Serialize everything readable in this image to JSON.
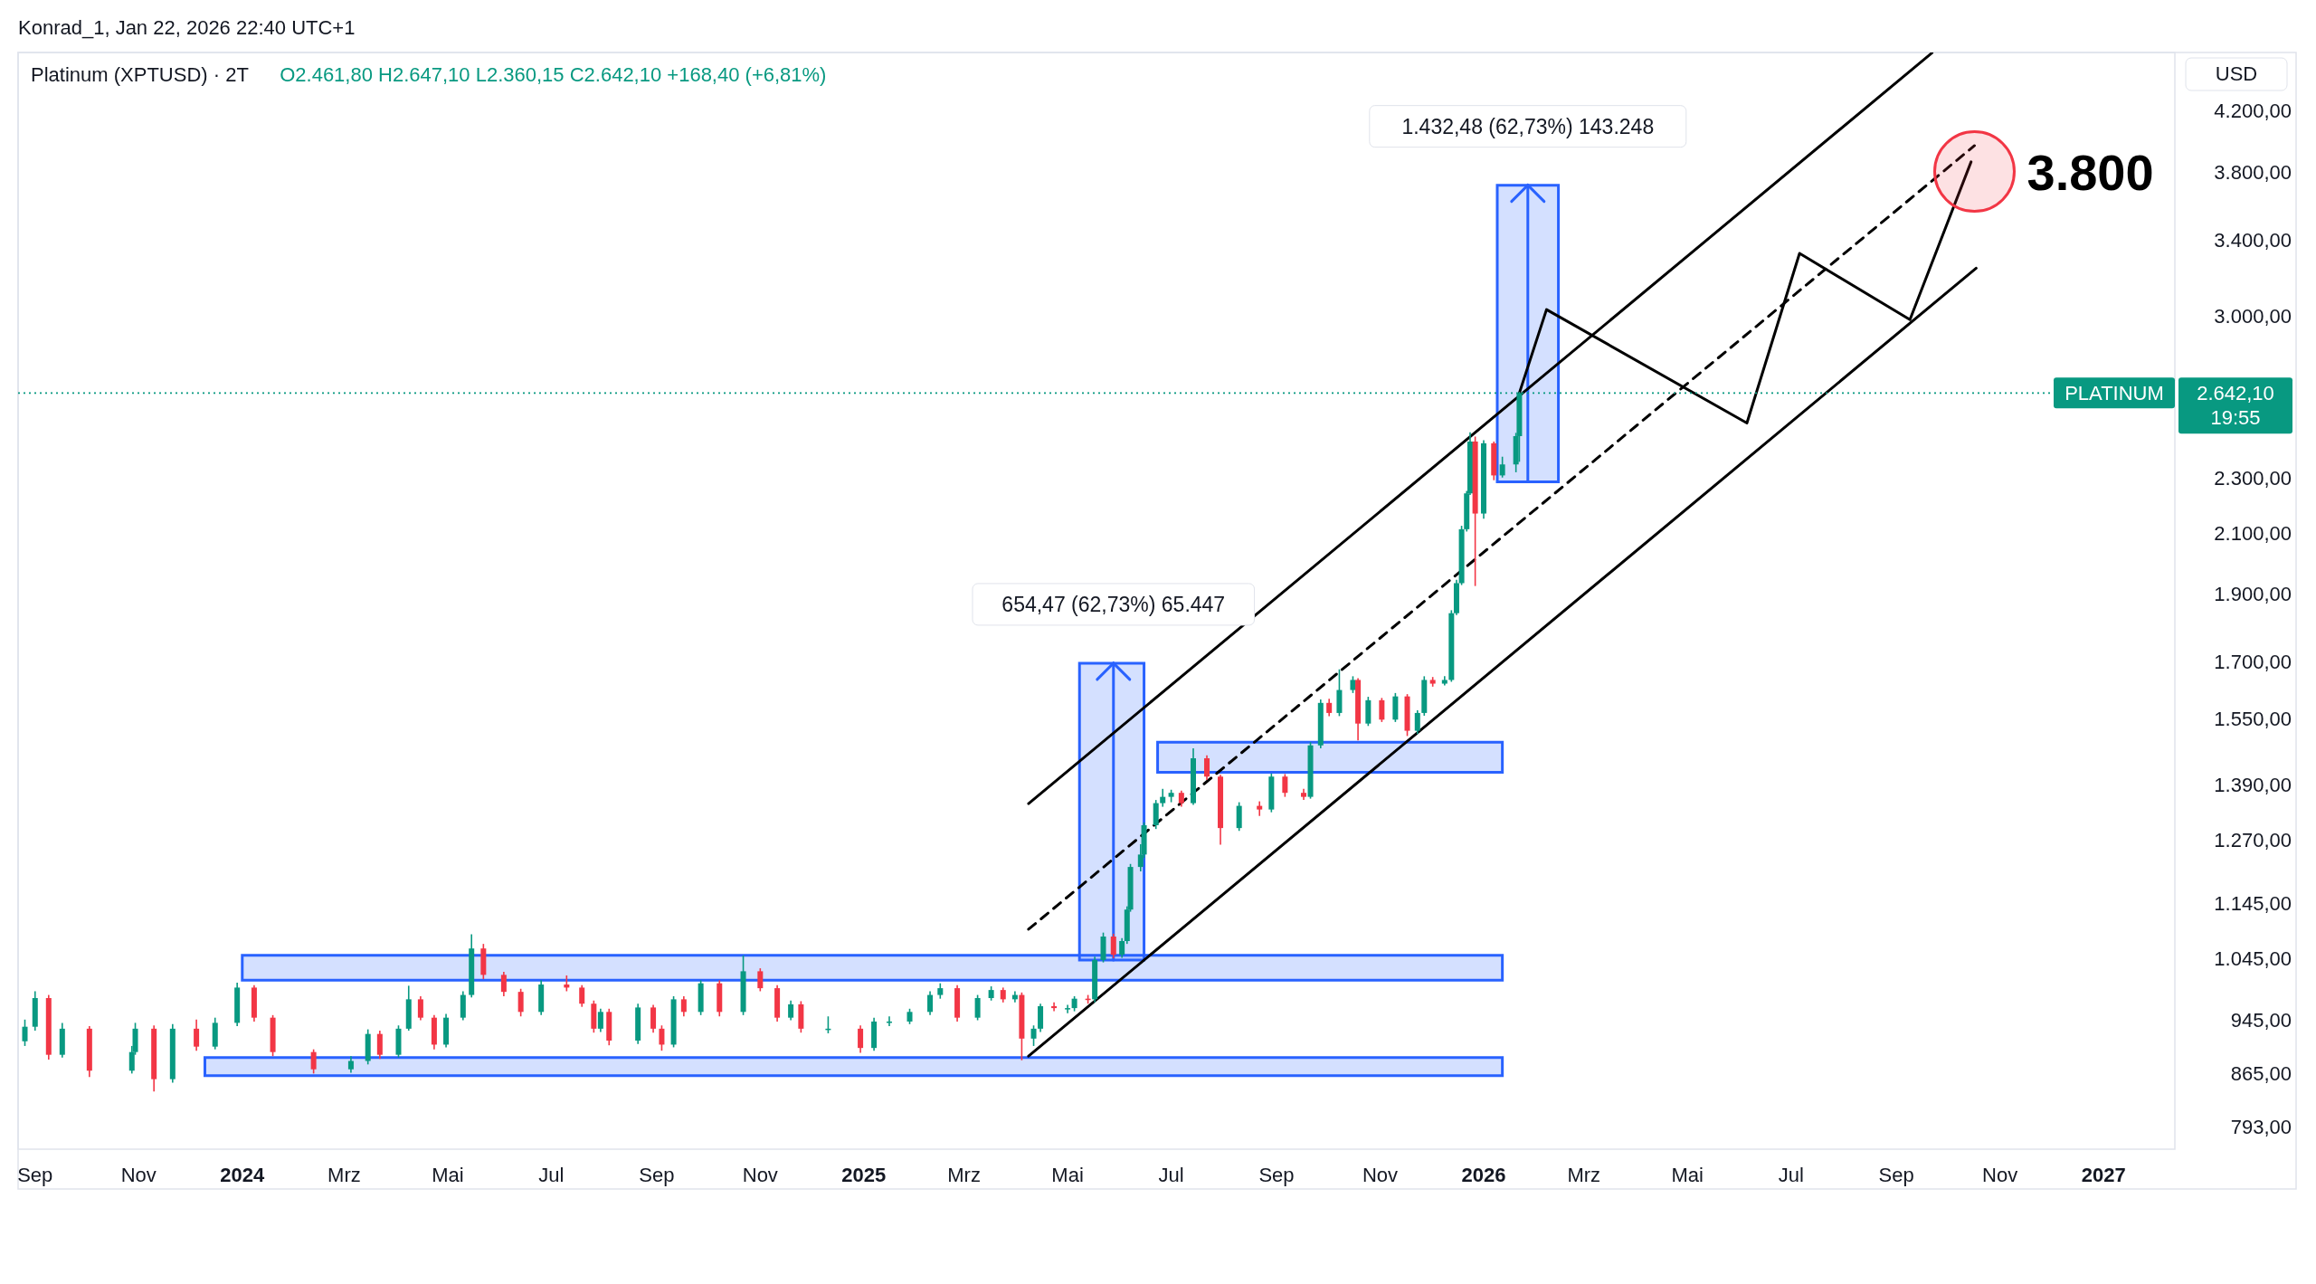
{
  "chart_data": {
    "type": "candlestick",
    "title": "Platinum (XPTUSD) · 2T",
    "ylabel": "USD",
    "log": true,
    "xlim": [
      "2023-08-22",
      "2027-02-12"
    ],
    "ylim": [
      764,
      4620
    ],
    "xticks": [
      {
        "value": "2023-09-01",
        "label": "Sep"
      },
      {
        "value": "2023-11-01",
        "label": "Nov"
      },
      {
        "value": "2024-01-01",
        "label": "2024"
      },
      {
        "value": "2024-03-01",
        "label": "Mrz"
      },
      {
        "value": "2024-05-01",
        "label": "Mai"
      },
      {
        "value": "2024-07-01",
        "label": "Jul"
      },
      {
        "value": "2024-09-01",
        "label": "Sep"
      },
      {
        "value": "2024-11-01",
        "label": "Nov"
      },
      {
        "value": "2025-01-01",
        "label": "2025"
      },
      {
        "value": "2025-03-01",
        "label": "Mrz"
      },
      {
        "value": "2025-05-01",
        "label": "Mai"
      },
      {
        "value": "2025-07-01",
        "label": "Jul"
      },
      {
        "value": "2025-09-01",
        "label": "Sep"
      },
      {
        "value": "2025-11-01",
        "label": "Nov"
      },
      {
        "value": "2026-01-01",
        "label": "2026"
      },
      {
        "value": "2026-03-01",
        "label": "Mrz"
      },
      {
        "value": "2026-05-01",
        "label": "Mai"
      },
      {
        "value": "2026-07-01",
        "label": "Jul"
      },
      {
        "value": "2026-09-01",
        "label": "Sep"
      },
      {
        "value": "2026-11-01",
        "label": "Nov"
      },
      {
        "value": "2027-01-01",
        "label": "2027"
      }
    ],
    "yticks": [
      {
        "value": 793,
        "label": "793,00"
      },
      {
        "value": 865,
        "label": "865,00"
      },
      {
        "value": 945,
        "label": "945,00"
      },
      {
        "value": 1045,
        "label": "1.045,00"
      },
      {
        "value": 1145,
        "label": "1.145,00"
      },
      {
        "value": 1270,
        "label": "1.270,00"
      },
      {
        "value": 1390,
        "label": "1.390,00"
      },
      {
        "value": 1550,
        "label": "1.550,00"
      },
      {
        "value": 1700,
        "label": "1.700,00"
      },
      {
        "value": 1900,
        "label": "1.900,00"
      },
      {
        "value": 2100,
        "label": "2.100,00"
      },
      {
        "value": 2300,
        "label": "2.300,00"
      },
      {
        "value": 3000,
        "label": "3.000,00"
      },
      {
        "value": 3400,
        "label": "3.400,00"
      },
      {
        "value": 3800,
        "label": "3.800,00"
      },
      {
        "value": 4200,
        "label": "4.200,00"
      }
    ],
    "x": [
      "2023-08-26",
      "2023-09-01",
      "2023-09-09",
      "2023-09-17",
      "2023-10-03",
      "2023-10-28",
      "2023-10-30",
      "2023-11-10",
      "2023-11-21",
      "2023-12-05",
      "2023-12-16",
      "2023-12-29",
      "2024-01-08",
      "2024-01-19",
      "2024-02-12",
      "2024-03-05",
      "2024-03-15",
      "2024-03-22",
      "2024-04-02",
      "2024-04-08",
      "2024-04-15",
      "2024-04-23",
      "2024-04-30",
      "2024-05-10",
      "2024-05-15",
      "2024-05-22",
      "2024-06-03",
      "2024-06-13",
      "2024-06-25",
      "2024-07-10",
      "2024-07-19",
      "2024-07-26",
      "2024-07-30",
      "2024-08-04",
      "2024-08-21",
      "2024-08-30",
      "2024-09-04",
      "2024-09-11",
      "2024-09-17",
      "2024-09-27",
      "2024-10-08",
      "2024-10-22",
      "2024-11-01",
      "2024-11-11",
      "2024-11-19",
      "2024-11-25",
      "2024-12-11",
      "2024-12-30",
      "2025-01-07",
      "2025-01-16",
      "2025-01-28",
      "2025-02-09",
      "2025-02-15",
      "2025-02-25",
      "2025-03-09",
      "2025-03-17",
      "2025-03-24",
      "2025-03-31",
      "2025-04-04",
      "2025-04-11",
      "2025-04-15",
      "2025-04-23",
      "2025-05-01",
      "2025-05-05",
      "2025-05-13",
      "2025-05-17",
      "2025-05-22",
      "2025-05-28",
      "2025-06-02",
      "2025-06-05",
      "2025-06-07",
      "2025-06-13",
      "2025-06-15",
      "2025-06-22",
      "2025-06-26",
      "2025-07-01",
      "2025-07-07",
      "2025-07-14",
      "2025-07-22",
      "2025-07-30",
      "2025-08-10",
      "2025-08-22",
      "2025-08-29",
      "2025-09-06",
      "2025-09-17",
      "2025-09-21",
      "2025-09-27",
      "2025-10-02",
      "2025-10-08",
      "2025-10-16",
      "2025-10-19",
      "2025-10-25",
      "2025-11-02",
      "2025-11-10",
      "2025-11-17",
      "2025-11-23",
      "2025-11-27",
      "2025-12-02",
      "2025-12-09",
      "2025-12-13",
      "2025-12-16",
      "2025-12-19",
      "2025-12-22",
      "2025-12-24",
      "2025-12-27",
      "2026-01-01",
      "2026-01-07",
      "2026-01-12",
      "2026-01-20",
      "2026-01-22"
    ],
    "ohlc": [
      [
        912,
        945,
        905,
        934
      ],
      [
        934,
        990,
        928,
        979
      ],
      [
        979,
        984,
        885,
        892
      ],
      [
        892,
        940,
        888,
        931
      ],
      [
        931,
        935,
        860,
        869
      ],
      [
        869,
        905,
        865,
        896
      ],
      [
        896,
        940,
        892,
        931
      ],
      [
        931,
        936,
        840,
        857
      ],
      [
        857,
        938,
        852,
        931
      ],
      [
        931,
        945,
        898,
        904
      ],
      [
        904,
        948,
        900,
        940
      ],
      [
        940,
        1004,
        935,
        996
      ],
      [
        996,
        1000,
        942,
        948
      ],
      [
        948,
        952,
        890,
        896
      ],
      [
        896,
        900,
        865,
        871
      ],
      [
        871,
        890,
        866,
        883
      ],
      [
        883,
        930,
        878,
        923
      ],
      [
        923,
        928,
        886,
        892
      ],
      [
        892,
        936,
        888,
        931
      ],
      [
        931,
        999,
        928,
        977
      ],
      [
        977,
        982,
        944,
        948
      ],
      [
        948,
        952,
        900,
        907
      ],
      [
        907,
        954,
        903,
        948
      ],
      [
        948,
        990,
        944,
        984
      ],
      [
        984,
        1087,
        980,
        1062
      ],
      [
        1062,
        1070,
        1010,
        1017
      ],
      [
        1017,
        1022,
        982,
        989
      ],
      [
        989,
        994,
        950,
        957
      ],
      [
        957,
        1008,
        952,
        1001
      ],
      [
        1001,
        1016,
        990,
        996
      ],
      [
        996,
        1000,
        965,
        970
      ],
      [
        970,
        975,
        925,
        931
      ],
      [
        931,
        962,
        926,
        957
      ],
      [
        957,
        962,
        906,
        913
      ],
      [
        913,
        970,
        908,
        964
      ],
      [
        964,
        968,
        925,
        931
      ],
      [
        931,
        936,
        898,
        907
      ],
      [
        907,
        982,
        903,
        977
      ],
      [
        977,
        982,
        950,
        957
      ],
      [
        957,
        1008,
        952,
        1003
      ],
      [
        1003,
        1008,
        950,
        957
      ],
      [
        957,
        1050,
        952,
        1023
      ],
      [
        1023,
        1028,
        990,
        995
      ],
      [
        995,
        1000,
        942,
        948
      ],
      [
        948,
        975,
        944,
        969
      ],
      [
        969,
        974,
        925,
        931
      ],
      [
        931,
        950,
        924,
        931
      ],
      [
        931,
        936,
        895,
        902
      ],
      [
        902,
        948,
        898,
        942
      ],
      [
        942,
        950,
        935,
        942
      ],
      [
        942,
        962,
        938,
        957
      ],
      [
        957,
        990,
        952,
        984
      ],
      [
        984,
        1003,
        978,
        995
      ],
      [
        995,
        1000,
        942,
        948
      ],
      [
        948,
        984,
        944,
        979
      ],
      [
        979,
        998,
        975,
        992
      ],
      [
        992,
        996,
        972,
        977
      ],
      [
        977,
        990,
        972,
        984
      ],
      [
        984,
        988,
        884,
        916
      ],
      [
        916,
        936,
        905,
        931
      ],
      [
        931,
        970,
        926,
        966
      ],
      [
        966,
        972,
        958,
        963
      ],
      [
        963,
        968,
        955,
        963
      ],
      [
        963,
        982,
        958,
        978
      ],
      [
        978,
        984,
        970,
        977
      ],
      [
        977,
        1048,
        972,
        1042
      ],
      [
        1042,
        1090,
        1038,
        1083
      ],
      [
        1083,
        1088,
        1045,
        1051
      ],
      [
        1051,
        1080,
        1046,
        1075
      ],
      [
        1075,
        1138,
        1070,
        1132
      ],
      [
        1132,
        1220,
        1128,
        1214
      ],
      [
        1214,
        1260,
        1205,
        1239
      ],
      [
        1239,
        1306,
        1232,
        1300
      ],
      [
        1300,
        1355,
        1292,
        1348
      ],
      [
        1348,
        1380,
        1340,
        1362
      ],
      [
        1362,
        1378,
        1350,
        1371
      ],
      [
        1371,
        1376,
        1340,
        1348
      ],
      [
        1348,
        1475,
        1344,
        1451
      ],
      [
        1451,
        1458,
        1400,
        1408
      ],
      [
        1408,
        1412,
        1259,
        1294
      ],
      [
        1294,
        1350,
        1288,
        1342
      ],
      [
        1342,
        1352,
        1320,
        1334
      ],
      [
        1334,
        1415,
        1328,
        1408
      ],
      [
        1408,
        1414,
        1362,
        1371
      ],
      [
        1371,
        1380,
        1355,
        1362
      ],
      [
        1362,
        1490,
        1358,
        1482
      ],
      [
        1482,
        1598,
        1475,
        1589
      ],
      [
        1589,
        1600,
        1555,
        1563
      ],
      [
        1563,
        1679,
        1555,
        1623
      ],
      [
        1623,
        1660,
        1615,
        1650
      ],
      [
        1650,
        1655,
        1494,
        1536
      ],
      [
        1536,
        1605,
        1530,
        1596
      ],
      [
        1596,
        1602,
        1540,
        1546
      ],
      [
        1546,
        1615,
        1540,
        1606
      ],
      [
        1606,
        1612,
        1505,
        1518
      ],
      [
        1518,
        1570,
        1510,
        1563
      ],
      [
        1563,
        1660,
        1556,
        1650
      ],
      [
        1650,
        1658,
        1632,
        1640
      ],
      [
        1640,
        1660,
        1635,
        1650
      ],
      [
        1650,
        1850,
        1645,
        1841
      ],
      [
        1841,
        1945,
        1835,
        1934
      ],
      [
        1934,
        2125,
        1928,
        2113
      ],
      [
        2113,
        2250,
        2105,
        2241
      ],
      [
        2241,
        2477,
        2235,
        2440
      ],
      [
        2440,
        2460,
        1925,
        2168
      ],
      [
        2168,
        2445,
        2150,
        2433
      ],
      [
        2433,
        2440,
        2290,
        2308
      ],
      [
        2308,
        2380,
        2300,
        2350
      ],
      [
        2350,
        2475,
        2320,
        2461.8
      ],
      [
        2461.8,
        2647.1,
        2360.15,
        2642.1
      ]
    ],
    "series": [
      {
        "type": "line",
        "color": "#2962ff",
        "x": [
          "2023-12-10",
          "2026-01-12"
        ],
        "values": [
          null,
          null
        ],
        "lower": [
          862,
          862
        ],
        "upper": [
          888,
          888
        ]
      },
      {
        "type": "line",
        "color": "#2962ff",
        "x": [
          "2024-01-01",
          "2026-01-12"
        ],
        "values": [
          null,
          null
        ],
        "lower": [
          1008,
          1008
        ],
        "upper": [
          1050,
          1050
        ]
      },
      {
        "type": "line",
        "color": "#2962ff",
        "x": [
          "2025-06-23",
          "2026-01-12"
        ],
        "values": [
          null,
          null
        ],
        "lower": [
          1418,
          1418
        ],
        "upper": [
          1490,
          1490
        ]
      },
      {
        "type": "line",
        "color": "#2962ff",
        "x": [
          "2025-05-08",
          "2025-06-15"
        ],
        "values": [
          null,
          null
        ],
        "lower": [
          1042,
          1042
        ],
        "upper": [
          1696,
          1696
        ]
      },
      {
        "type": "line",
        "color": "#2962ff",
        "x": [
          "2026-01-09",
          "2026-02-14"
        ],
        "values": [
          null,
          null
        ],
        "lower": [
          2284,
          2284
        ],
        "upper": [
          3716,
          3716
        ]
      },
      {
        "type": "line",
        "color": "#2962ff",
        "x": [
          "2025-05-28",
          "2025-05-28"
        ],
        "values": [
          1042,
          1696
        ]
      },
      {
        "type": "line",
        "color": "#2962ff",
        "x": [
          "2026-01-27",
          "2026-01-27"
        ],
        "values": [
          2284,
          3716
        ]
      },
      {
        "type": "line",
        "color": "#000000",
        "x": [
          "2025-04-08",
          "2026-09-22"
        ],
        "values": [
          1347,
          4617
        ]
      },
      {
        "type": "line",
        "color": "#000000",
        "x": [
          "2025-04-08",
          "2026-10-18"
        ],
        "values": [
          890,
          3243
        ]
      },
      {
        "type": "line",
        "color": "#000000",
        "line_style": "dashed",
        "x": [
          "2025-04-08",
          "2026-10-17"
        ],
        "values": [
          1096,
          3965
        ]
      },
      {
        "type": "line",
        "color": "#000000",
        "x": [
          "2026-01-22",
          "2026-02-07",
          "2026-06-05",
          "2026-07-06",
          "2026-09-09",
          "2026-10-15"
        ],
        "values": [
          2642,
          3030,
          2515,
          3323,
          2980,
          3861
        ]
      },
      {
        "type": "scatter",
        "color": "#f23645",
        "marker": "circle",
        "x": [
          "2026-10-17"
        ],
        "values": [
          3800
        ]
      }
    ],
    "ref_lines": [
      {
        "axis": "y",
        "value": 2642.1,
        "label": "PLATINUM",
        "color": "#089981",
        "line_style": "dotted"
      }
    ],
    "annotations": [
      "Konrad_1, Jan 22, 2026 22:40 UTC+1",
      "O2.461,80 H2.647,10 L2.360,15 C2.642,10 +168,40 (+6,81%)",
      "2.642,10",
      "19:55",
      {
        "text": "654,47 (62,73%) 65.447",
        "x": "2025-05-28",
        "y": 1696
      },
      {
        "text": "1.432,48 (62,73%) 143.248",
        "x": "2026-01-27",
        "y": 3716
      },
      {
        "text": "3.800",
        "x": "2026-10-17",
        "y": 3800
      }
    ]
  }
}
